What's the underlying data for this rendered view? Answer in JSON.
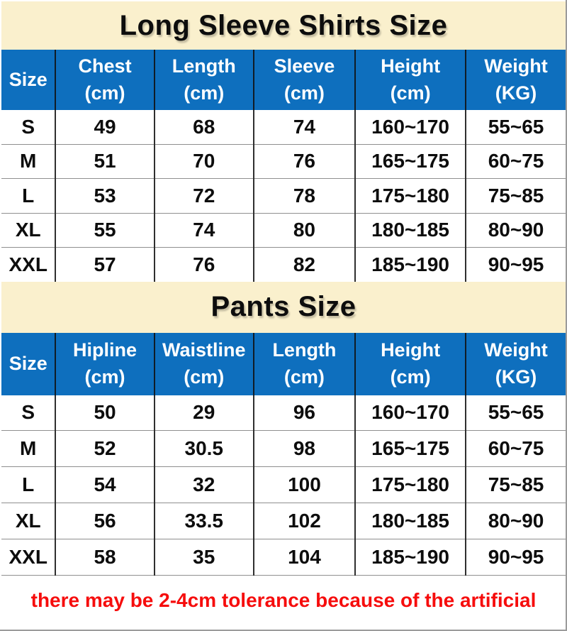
{
  "colors": {
    "title_band_background": "#faf0cd",
    "header_background": "#0e6fbe",
    "header_text": "#ffffff",
    "body_text": "#0d0d0d",
    "row_divider": "#8f8f8f",
    "column_divider": "#2f2f2f",
    "note_text": "#f60d0d",
    "sheet_edge": "#9b9b9b"
  },
  "tables": [
    {
      "title": "Long Sleeve Shirts Size",
      "columns": [
        {
          "label": "Size",
          "unit": ""
        },
        {
          "label": "Chest",
          "unit": "(cm)"
        },
        {
          "label": "Length",
          "unit": "(cm)"
        },
        {
          "label": "Sleeve",
          "unit": "(cm)"
        },
        {
          "label": "Height",
          "unit": "(cm)"
        },
        {
          "label": "Weight",
          "unit": "(KG)"
        }
      ],
      "rows": [
        [
          "S",
          "49",
          "68",
          "74",
          "160~170",
          "55~65"
        ],
        [
          "M",
          "51",
          "70",
          "76",
          "165~175",
          "60~75"
        ],
        [
          "L",
          "53",
          "72",
          "78",
          "175~180",
          "75~85"
        ],
        [
          "XL",
          "55",
          "74",
          "80",
          "180~185",
          "80~90"
        ],
        [
          "XXL",
          "57",
          "76",
          "82",
          "185~190",
          "90~95"
        ]
      ]
    },
    {
      "title": "Pants Size",
      "columns": [
        {
          "label": "Size",
          "unit": ""
        },
        {
          "label": "Hipline",
          "unit": "(cm)"
        },
        {
          "label": "Waistline",
          "unit": "(cm)"
        },
        {
          "label": "Length",
          "unit": "(cm)"
        },
        {
          "label": "Height",
          "unit": "(cm)"
        },
        {
          "label": "Weight",
          "unit": "(KG)"
        }
      ],
      "rows": [
        [
          "S",
          "50",
          "29",
          "96",
          "160~170",
          "55~65"
        ],
        [
          "M",
          "52",
          "30.5",
          "98",
          "165~175",
          "60~75"
        ],
        [
          "L",
          "54",
          "32",
          "100",
          "175~180",
          "75~85"
        ],
        [
          "XL",
          "56",
          "33.5",
          "102",
          "180~185",
          "80~90"
        ],
        [
          "XXL",
          "58",
          "35",
          "104",
          "185~190",
          "90~95"
        ]
      ]
    }
  ],
  "footer": {
    "note": "there may be 2-4cm tolerance because of the artificial"
  }
}
